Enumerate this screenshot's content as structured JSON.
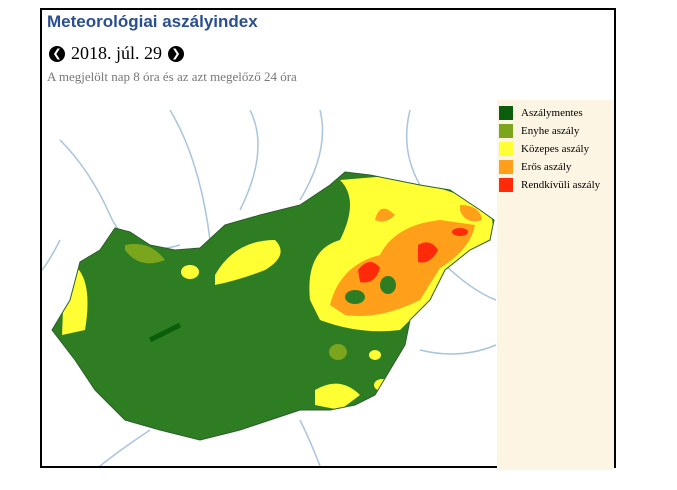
{
  "header": {
    "title": "Meteorológiai aszályindex",
    "date": "2018. júl. 29",
    "subtitle": "A megjelölt nap 8 óra és az azt megelőző 24 óra"
  },
  "legend": {
    "items": [
      {
        "label": "Aszálymentes",
        "color": "#0b5e0b"
      },
      {
        "label": "Enyhe aszály",
        "color": "#7aa51c"
      },
      {
        "label": "Közepes aszály",
        "color": "#ffff33"
      },
      {
        "label": "Erős aszály",
        "color": "#ff9f1a"
      },
      {
        "label": "Rendkívüli aszály",
        "color": "#ff2a0a"
      }
    ]
  }
}
